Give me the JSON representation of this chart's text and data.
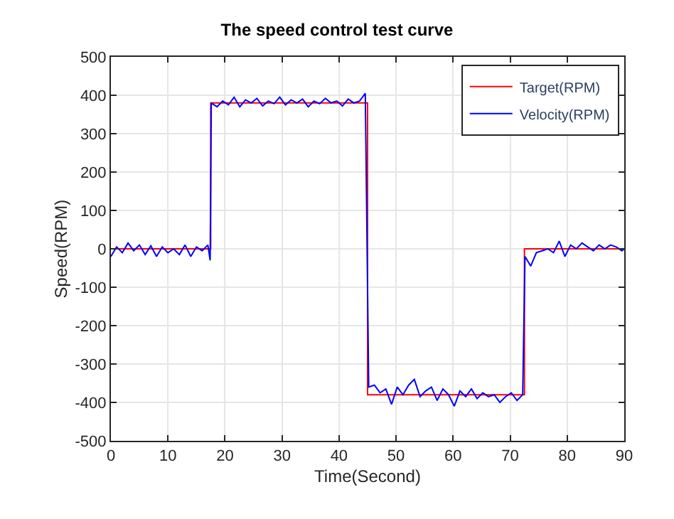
{
  "chart_data": {
    "type": "line",
    "title": "The speed control test curve",
    "xlabel": "Time(Second)",
    "ylabel": "Speed(RPM)",
    "xlim": [
      0,
      90
    ],
    "ylim": [
      -500,
      500
    ],
    "xticks": [
      0,
      10,
      20,
      30,
      40,
      50,
      60,
      70,
      80,
      90
    ],
    "yticks": [
      -500,
      -400,
      -300,
      -200,
      -100,
      0,
      100,
      200,
      300,
      400,
      500
    ],
    "grid": true,
    "legend": "top right",
    "marker": "none",
    "line_style": "solid",
    "series": [
      {
        "name": "Target(RPM)",
        "color": "#ff0000",
        "x": [
          0,
          17.5,
          17.5,
          45,
          45,
          72.5,
          72.5,
          90
        ],
        "values": [
          0,
          0,
          380,
          380,
          -380,
          -380,
          0,
          0
        ]
      },
      {
        "name": "Velocity(RPM)",
        "color": "#0000ff",
        "x": [
          0,
          1,
          2,
          3,
          4,
          5,
          6,
          7,
          8,
          9,
          10,
          11,
          12,
          13,
          14,
          15,
          16,
          17,
          17.4,
          17.6,
          18.6,
          19.6,
          20.6,
          21.6,
          22.6,
          23.6,
          24.6,
          25.6,
          26.6,
          27.6,
          28.6,
          29.6,
          30.6,
          31.6,
          32.6,
          33.6,
          34.6,
          35.6,
          36.6,
          37.6,
          38.6,
          39.6,
          40.6,
          41.6,
          42.6,
          43.6,
          44.6,
          45.2,
          46.2,
          47.2,
          48.2,
          49.2,
          50.2,
          51.2,
          52.2,
          53.2,
          54.2,
          55.2,
          56.2,
          57.2,
          58.2,
          59.2,
          60.2,
          61.2,
          62.2,
          63.2,
          64.2,
          65.2,
          66.2,
          67.2,
          68.2,
          69.2,
          70.2,
          71.2,
          72.2,
          72.6,
          73.6,
          74.6,
          75.6,
          76.6,
          77.6,
          78.6,
          79.6,
          80.6,
          81.6,
          82.6,
          83.6,
          84.6,
          85.6,
          86.6,
          87.6,
          88.6,
          89.6,
          90
        ],
        "values": [
          -20,
          5,
          -10,
          15,
          -5,
          10,
          -15,
          8,
          -20,
          5,
          -10,
          0,
          -15,
          10,
          -20,
          5,
          -5,
          10,
          -30,
          380,
          370,
          385,
          375,
          395,
          370,
          388,
          380,
          392,
          372,
          385,
          378,
          395,
          375,
          388,
          380,
          390,
          370,
          385,
          378,
          392,
          380,
          385,
          372,
          390,
          380,
          385,
          405,
          -360,
          -355,
          -375,
          -365,
          -405,
          -360,
          -380,
          -355,
          -340,
          -385,
          -370,
          -360,
          -395,
          -365,
          -380,
          -410,
          -370,
          -385,
          -365,
          -390,
          -375,
          -385,
          -380,
          -400,
          -385,
          -375,
          -395,
          -380,
          -20,
          -45,
          -10,
          -5,
          0,
          -10,
          20,
          -20,
          10,
          0,
          15,
          5,
          -5,
          10,
          0,
          10,
          5,
          -5,
          0
        ]
      }
    ]
  }
}
